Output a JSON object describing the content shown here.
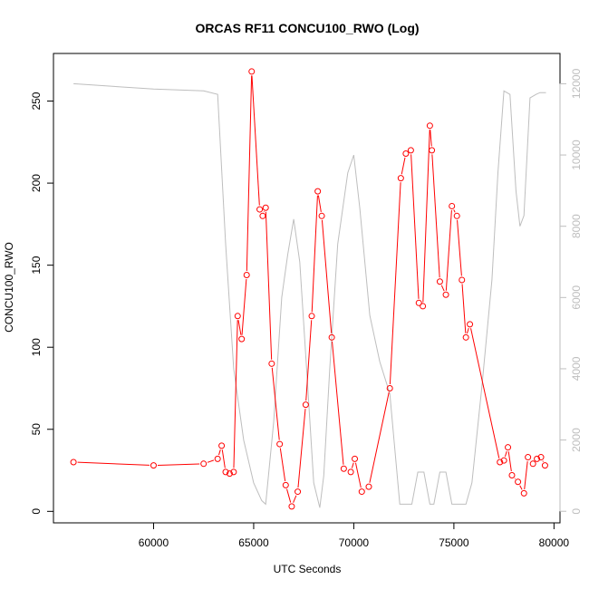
{
  "chart_data": {
    "type": "line",
    "title": "ORCAS RF11 CONCU100_RWO (Log)",
    "xlabel": "UTC Seconds",
    "ylabel": "CONCU100_RWO",
    "xlim": [
      55000,
      80300
    ],
    "ylim": [
      -7,
      279
    ],
    "y2lim": [
      -325,
      12850
    ],
    "x_ticks": [
      60000,
      65000,
      70000,
      75000,
      80000
    ],
    "y_ticks": [
      0,
      50,
      100,
      150,
      200,
      250
    ],
    "y2_ticks": [
      0,
      2000,
      4000,
      6000,
      8000,
      10000,
      12000
    ],
    "grid": false,
    "legend": "none",
    "series": [
      {
        "axis": "left",
        "color": "#ff0000",
        "marker": "open-circle",
        "x": [
          56000,
          60000,
          62500,
          63200,
          63400,
          63600,
          63800,
          64000,
          64200,
          64400,
          64650,
          64900,
          65300,
          65450,
          65600,
          65900,
          66300,
          66600,
          66900,
          67200,
          67600,
          67900,
          68200,
          68400,
          68900,
          69500,
          69850,
          70050,
          70400,
          70750,
          71800,
          72350,
          72600,
          72850,
          73250,
          73450,
          73800,
          73900,
          74300,
          74600,
          74900,
          75150,
          75400,
          75600,
          75800,
          77300,
          77500,
          77700,
          77900,
          78200,
          78500,
          78700,
          78950,
          79150,
          79350,
          79550
        ],
        "y": [
          30,
          28,
          29,
          32,
          40,
          24,
          23,
          24,
          119,
          105,
          144,
          268,
          184,
          180,
          185,
          90,
          41,
          16,
          3,
          12,
          65,
          119,
          195,
          180,
          106,
          26,
          24,
          32,
          12,
          15,
          75,
          203,
          218,
          220,
          127,
          125,
          235,
          220,
          140,
          132,
          186,
          180,
          141,
          106,
          114,
          30,
          31,
          39,
          22,
          18,
          11,
          33,
          29,
          32,
          33,
          28
        ]
      },
      {
        "axis": "right",
        "color": "#bebebe",
        "marker": "none",
        "x": [
          56000,
          60000,
          62500,
          63200,
          63600,
          64000,
          64500,
          65000,
          65400,
          65600,
          66000,
          66400,
          66700,
          67000,
          67300,
          67700,
          68000,
          68300,
          68500,
          68800,
          69200,
          69700,
          70000,
          70300,
          70800,
          71300,
          71800,
          72300,
          72600,
          72900,
          73200,
          73500,
          73800,
          74000,
          74300,
          74600,
          74900,
          75200,
          75600,
          75900,
          76400,
          76900,
          77200,
          77500,
          77800,
          78100,
          78300,
          78500,
          78800,
          79100,
          79300,
          79600
        ],
        "y": [
          12000,
          11850,
          11800,
          11700,
          7500,
          4000,
          2000,
          800,
          300,
          200,
          2500,
          6000,
          7200,
          8200,
          7000,
          3500,
          800,
          100,
          1000,
          4000,
          7500,
          9500,
          10000,
          8500,
          5500,
          4200,
          3300,
          200,
          200,
          200,
          1100,
          1100,
          200,
          200,
          1100,
          1100,
          200,
          200,
          200,
          800,
          3500,
          6500,
          9500,
          11800,
          11700,
          9000,
          8000,
          8300,
          11600,
          11700,
          11750,
          11750
        ]
      }
    ]
  }
}
